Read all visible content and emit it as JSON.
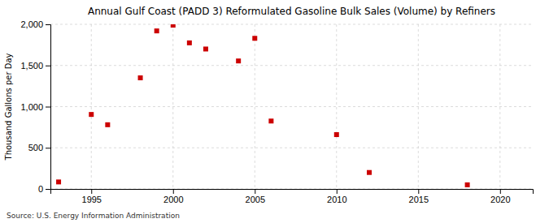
{
  "chart_data": {
    "type": "scatter",
    "title": "Annual Gulf Coast (PADD 3) Reformulated Gasoline Bulk Sales (Volume) by Refiners",
    "ylabel": "Thousand Gallons per Day",
    "source": "Source: U.S. Energy Information Administration",
    "x": [
      1993,
      1995,
      1996,
      1998,
      1999,
      2000,
      2001,
      2002,
      2004,
      2005,
      2006,
      2010,
      2012,
      2018
    ],
    "y": [
      85,
      905,
      780,
      1350,
      1920,
      1990,
      1775,
      1700,
      1555,
      1830,
      825,
      660,
      200,
      50
    ],
    "color": "#cc0000",
    "marker": "square",
    "xlim": [
      1992.5,
      2022
    ],
    "ylim": [
      0,
      2000
    ],
    "xticks": [
      1995,
      2000,
      2005,
      2010,
      2015,
      2020
    ],
    "yticks": [
      0,
      {
        "value": 500,
        "label": "500"
      },
      {
        "value": 1000,
        "label": "1,000"
      },
      {
        "value": 1500,
        "label": "1,500"
      },
      {
        "value": 2000,
        "label": "2,000"
      }
    ],
    "grid": true
  }
}
